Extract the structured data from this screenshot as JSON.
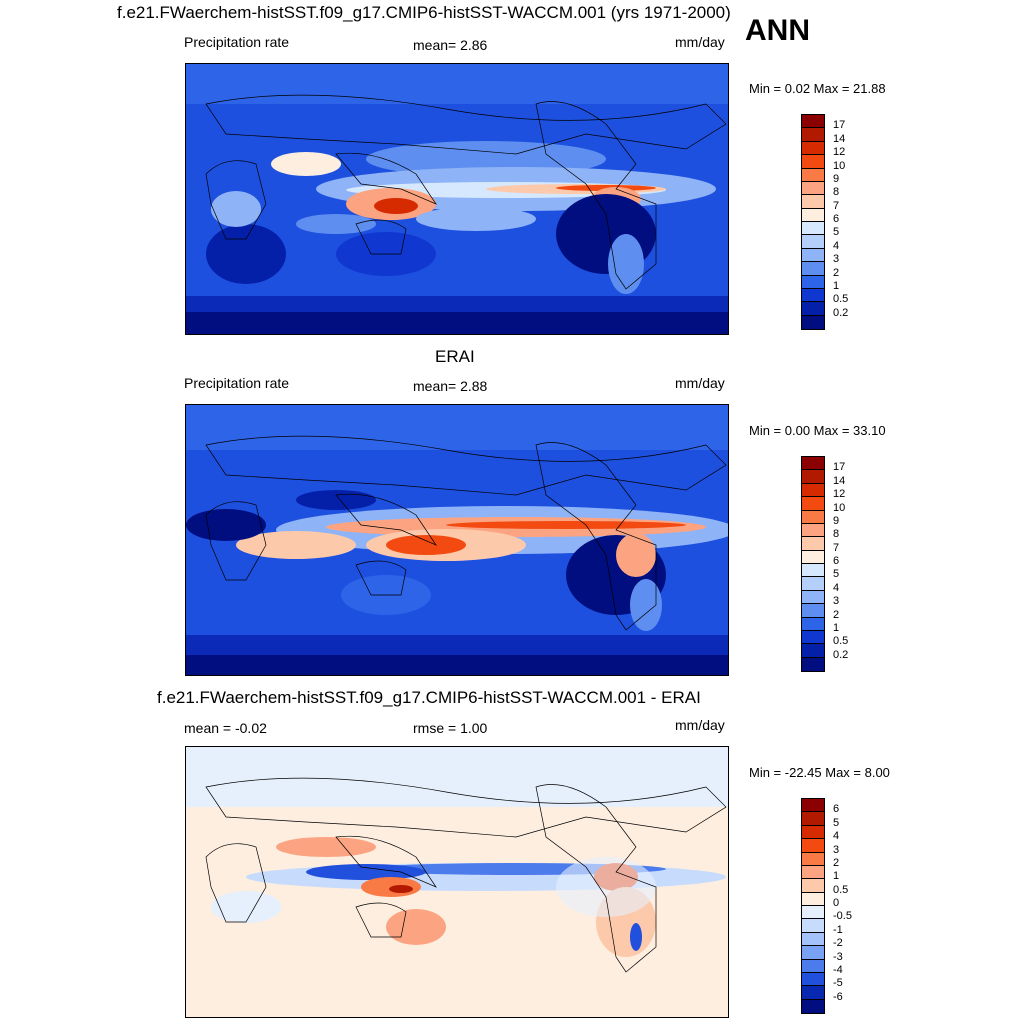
{
  "header": {
    "title": "f.e21.FWaerchem-histSST.f09_g17.CMIP6-histSST-WACCM.001 (yrs 1971-2000)",
    "season": "ANN"
  },
  "panels": [
    {
      "title": "",
      "left_label": "Precipitation rate",
      "center_label": "mean=   2.86",
      "right_label": "mm/day",
      "minmax": "Min =   0.02 Max =  21.88"
    },
    {
      "title": "ERAI",
      "left_label": "Precipitation rate",
      "center_label": "mean=   2.88",
      "right_label": "mm/day",
      "minmax": "Min =   0.00 Max =  33.10"
    },
    {
      "title": "f.e21.FWaerchem-histSST.f09_g17.CMIP6-histSST-WACCM.001 - ERAI",
      "left_label": "mean =  -0.02",
      "center_label": "rmse =   1.00",
      "right_label": "mm/day",
      "minmax": "Min = -22.45 Max =   8.00"
    }
  ],
  "colorbars": {
    "precip": {
      "levels": [
        "17",
        "14",
        "12",
        "10",
        "9",
        "8",
        "7",
        "6",
        "5",
        "4",
        "3",
        "2",
        "1",
        "0.5",
        "0.2"
      ],
      "colors": [
        "#8b0000",
        "#b21a00",
        "#d62a00",
        "#f24a10",
        "#fa7a45",
        "#fca482",
        "#fdc9ab",
        "#fdeee0",
        "#d6e8fd",
        "#b5cffb",
        "#8fb3f7",
        "#5e8ff0",
        "#2e64e8",
        "#1038d0",
        "#0520a8",
        "#000e80"
      ]
    },
    "diff": {
      "levels": [
        "6",
        "5",
        "4",
        "3",
        "2",
        "1",
        "0.5",
        "0",
        "-0.5",
        "-1",
        "-2",
        "-3",
        "-4",
        "-5",
        "-6"
      ],
      "colors": [
        "#8b0000",
        "#b21a00",
        "#d62a00",
        "#f24a10",
        "#fa7a45",
        "#fca482",
        "#fdc9ab",
        "#fdeee0",
        "#e6f0fd",
        "#c7dbfc",
        "#a4c2fa",
        "#7aa2f4",
        "#4c7cec",
        "#2050dc",
        "#0828b0",
        "#000e80"
      ]
    }
  }
}
